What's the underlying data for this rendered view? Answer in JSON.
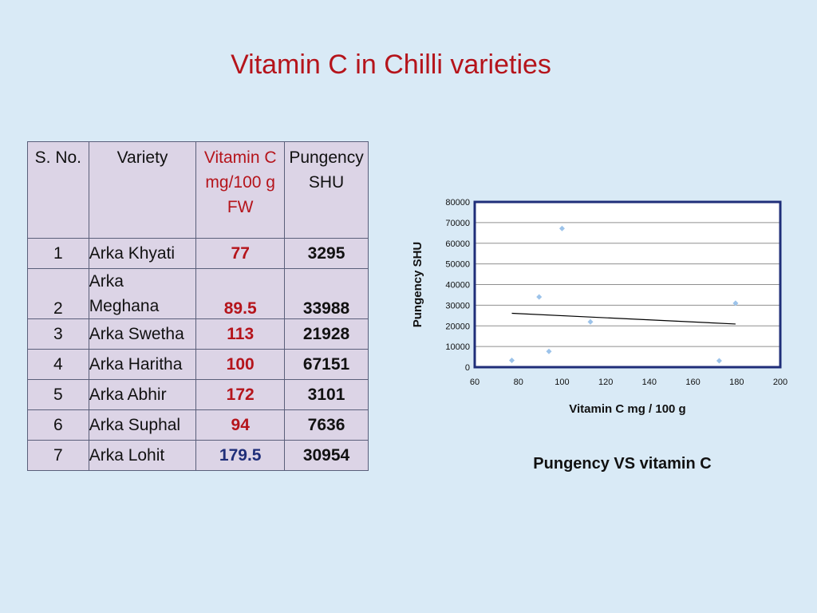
{
  "title": "Vitamin C in Chilli varieties",
  "table": {
    "headers": {
      "sno": "S. No.",
      "variety": "Variety",
      "vitc_1": "Vitamin C",
      "vitc_2": "mg/100 g",
      "vitc_3": "FW",
      "pung_1": "Pungency",
      "pung_2": "SHU"
    },
    "rows": [
      {
        "sno": "1",
        "variety": "Arka Khyati",
        "vitc": "77",
        "pungency": "3295"
      },
      {
        "sno": "2",
        "variety_1": "Arka",
        "variety_2": "Meghana",
        "vitc": "89.5",
        "pungency": "33988"
      },
      {
        "sno": "3",
        "variety": "Arka Swetha",
        "vitc": "113",
        "pungency": "21928"
      },
      {
        "sno": "4",
        "variety": "Arka Haritha",
        "vitc": "100",
        "pungency": "67151"
      },
      {
        "sno": "5",
        "variety": "Arka Abhir",
        "vitc": "172",
        "pungency": "3101"
      },
      {
        "sno": "6",
        "variety": "Arka Suphal",
        "vitc": "94",
        "pungency": "7636"
      },
      {
        "sno": "7",
        "variety": "Arka Lohit",
        "vitc": "179.5",
        "pungency": "30954"
      }
    ]
  },
  "chart_data": {
    "type": "scatter",
    "title": "Pungency VS vitamin C",
    "xlabel": "Vitamin C mg / 100 g",
    "ylabel": "Pungency SHU",
    "xlim": [
      60,
      200
    ],
    "ylim": [
      0,
      80000
    ],
    "xticks": [
      "60",
      "80",
      "100",
      "120",
      "140",
      "160",
      "180",
      "200"
    ],
    "yticks": [
      "0",
      "10000",
      "20000",
      "30000",
      "40000",
      "50000",
      "60000",
      "70000",
      "80000"
    ],
    "grid": true,
    "points": [
      {
        "x": 77,
        "y": 3295
      },
      {
        "x": 89.5,
        "y": 33988
      },
      {
        "x": 113,
        "y": 21928
      },
      {
        "x": 100,
        "y": 67151
      },
      {
        "x": 172,
        "y": 3101
      },
      {
        "x": 94,
        "y": 7636
      },
      {
        "x": 179.5,
        "y": 30954
      }
    ],
    "trendline": {
      "x": [
        77,
        179.5
      ],
      "y": [
        26100,
        20900
      ]
    },
    "colors": {
      "marker": "#9cc3ea",
      "frame": "#1f2e79",
      "trend": "#000000"
    }
  }
}
